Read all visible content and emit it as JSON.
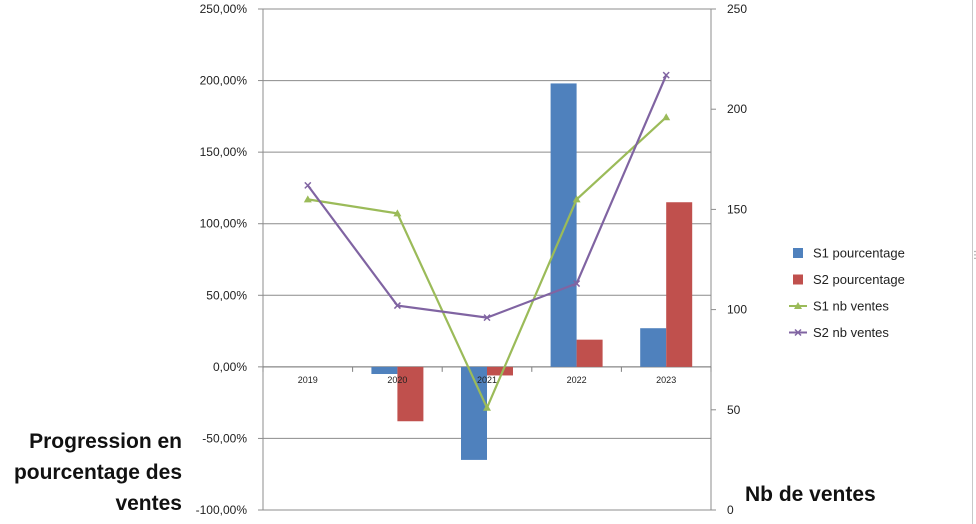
{
  "chart_data": {
    "type": "bar",
    "categories": [
      "2019",
      "2020",
      "2021",
      "2022",
      "2023"
    ],
    "series": [
      {
        "name": "S1 pourcentage",
        "kind": "bar",
        "axis": "left",
        "color": "#4f81bd",
        "values": [
          0,
          -5,
          -65,
          198,
          27
        ]
      },
      {
        "name": "S2 pourcentage",
        "kind": "bar",
        "axis": "left",
        "color": "#c0504d",
        "values": [
          0,
          -38,
          -6,
          19,
          115
        ]
      },
      {
        "name": "S1 nb ventes",
        "kind": "line",
        "marker": "triangle",
        "axis": "right",
        "color": "#9bbb59",
        "values": [
          155,
          148,
          51,
          155,
          196
        ]
      },
      {
        "name": "S2 nb ventes",
        "kind": "line",
        "marker": "x",
        "axis": "right",
        "color": "#8064a2",
        "values": [
          162,
          102,
          96,
          113,
          217
        ]
      }
    ],
    "y_left": {
      "label": "Progression en pourcentage des ventes",
      "label_lines": [
        "Progression en",
        "pourcentage des",
        "ventes"
      ],
      "ylim": [
        -100,
        250
      ],
      "ticks": [
        -100,
        -50,
        0,
        50,
        100,
        150,
        200,
        250
      ],
      "tick_labels": [
        "-100,00%",
        "-50,00%",
        "0,00%",
        "50,00%",
        "100,00%",
        "150,00%",
        "200,00%",
        "250,00%"
      ]
    },
    "y_right": {
      "label": "Nb de ventes",
      "ylim": [
        0,
        250
      ],
      "ticks": [
        0,
        50,
        100,
        150,
        200,
        250
      ],
      "tick_labels": [
        "0",
        "50",
        "100",
        "150",
        "200",
        "250"
      ]
    },
    "grid": true,
    "legend": "right"
  }
}
